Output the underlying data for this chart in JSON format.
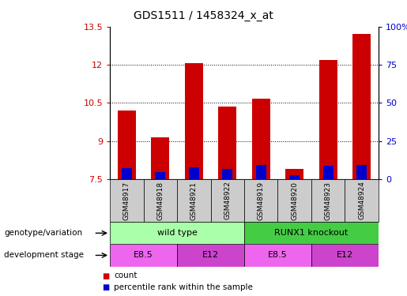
{
  "title": "GDS1511 / 1458324_x_at",
  "samples": [
    "GSM48917",
    "GSM48918",
    "GSM48921",
    "GSM48922",
    "GSM48919",
    "GSM48920",
    "GSM48923",
    "GSM48924"
  ],
  "count_values": [
    10.2,
    9.15,
    12.05,
    10.35,
    10.65,
    7.9,
    12.2,
    13.2
  ],
  "percentile_values": [
    7.0,
    4.5,
    7.5,
    6.5,
    9.0,
    2.5,
    8.5,
    9.5
  ],
  "ylim_left": [
    7.5,
    13.5
  ],
  "ylim_right": [
    0,
    100
  ],
  "yticks_left": [
    7.5,
    9.0,
    10.5,
    12.0,
    13.5
  ],
  "yticks_right": [
    0,
    25,
    50,
    75,
    100
  ],
  "ytick_labels_left": [
    "7.5",
    "9",
    "10.5",
    "12",
    "13.5"
  ],
  "ytick_labels_right": [
    "0",
    "25",
    "50",
    "75",
    "100%"
  ],
  "bar_color_red": "#cc0000",
  "bar_color_blue": "#0000cc",
  "bar_width": 0.55,
  "base_value": 7.5,
  "genotype_row": [
    {
      "label": "wild type",
      "start": 0,
      "end": 4,
      "color": "#aaffaa"
    },
    {
      "label": "RUNX1 knockout",
      "start": 4,
      "end": 8,
      "color": "#44cc44"
    }
  ],
  "stage_row": [
    {
      "label": "E8.5",
      "start": 0,
      "end": 2,
      "color": "#ee66ee"
    },
    {
      "label": "E12",
      "start": 2,
      "end": 4,
      "color": "#cc44cc"
    },
    {
      "label": "E8.5",
      "start": 4,
      "end": 6,
      "color": "#ee66ee"
    },
    {
      "label": "E12",
      "start": 6,
      "end": 8,
      "color": "#cc44cc"
    }
  ],
  "legend_red_label": "count",
  "legend_blue_label": "percentile rank within the sample",
  "axis_label_color_left": "#cc0000",
  "axis_label_color_right": "#0000cc",
  "background_color": "#ffffff",
  "sample_box_color": "#cccccc"
}
